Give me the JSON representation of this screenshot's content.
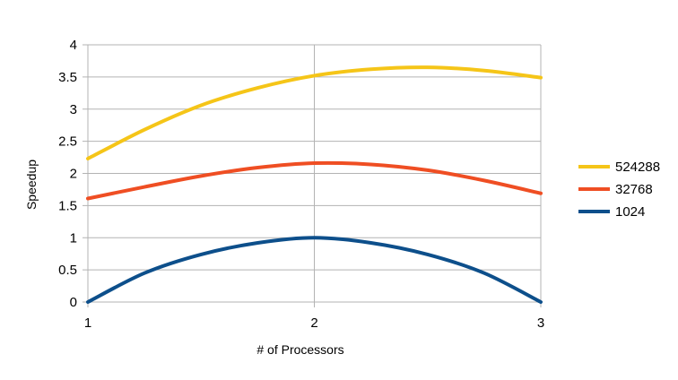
{
  "chart_data": {
    "type": "line",
    "title": "",
    "xlabel": "# of Processors",
    "ylabel": "Speedup",
    "x": [
      1,
      1.25,
      1.5,
      1.75,
      2,
      2.25,
      2.5,
      2.75,
      3
    ],
    "xticks": [
      "1",
      "2",
      "3"
    ],
    "xlim": [
      1,
      3
    ],
    "ylim": [
      0,
      4
    ],
    "yticks": [
      "0",
      "0.5",
      "1",
      "1.5",
      "2",
      "2.5",
      "3",
      "3.5",
      "4"
    ],
    "grid": true,
    "legend_position": "right",
    "series": [
      {
        "name": "524288",
        "color": "#f5c518",
        "values": [
          2.23,
          2.68,
          3.06,
          3.33,
          3.52,
          3.62,
          3.65,
          3.6,
          3.49
        ]
      },
      {
        "name": "32768",
        "color": "#ef4e23",
        "values": [
          1.61,
          1.79,
          1.96,
          2.09,
          2.16,
          2.14,
          2.05,
          1.89,
          1.69
        ]
      },
      {
        "name": "1024",
        "color": "#0d4f8b",
        "values": [
          0.0,
          0.45,
          0.74,
          0.92,
          1.0,
          0.92,
          0.74,
          0.45,
          0.0
        ]
      }
    ]
  }
}
